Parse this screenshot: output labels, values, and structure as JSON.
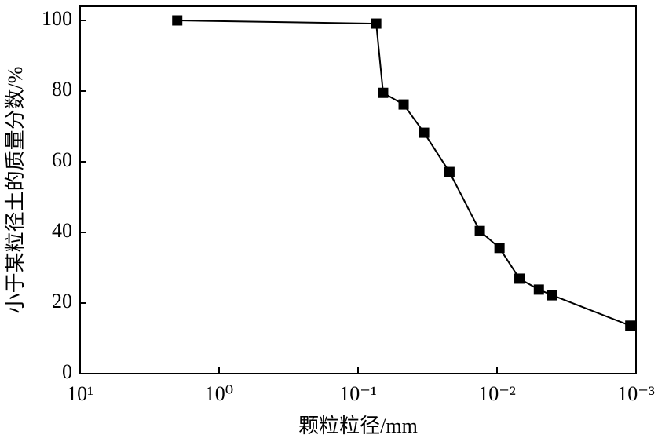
{
  "chart_data": {
    "type": "line",
    "x_label": "颗粒粒径/mm",
    "y_label": "小于某粒径土的质量分数/%",
    "x": [
      2.0,
      0.074,
      0.066,
      0.047,
      0.0335,
      0.022,
      0.0133,
      0.0096,
      0.0069,
      0.005,
      0.004,
      0.0011
    ],
    "values": [
      100,
      99.1,
      79.5,
      76.2,
      68.2,
      57.1,
      40.4,
      35.6,
      26.9,
      23.8,
      22.2,
      13.6
    ],
    "color": "#000000",
    "xscale": "log",
    "xlim": [
      10,
      0.001
    ],
    "xticks": [
      {
        "value": 10,
        "label": "10¹"
      },
      {
        "value": 1,
        "label": "10⁰"
      },
      {
        "value": 0.1,
        "label": "10⁻¹"
      },
      {
        "value": 0.01,
        "label": "10⁻²"
      },
      {
        "value": 0.001,
        "label": "10⁻³"
      }
    ],
    "ylim": [
      0,
      104
    ],
    "yticks": [
      0,
      20,
      40,
      60,
      80,
      100
    ],
    "grid": false
  }
}
